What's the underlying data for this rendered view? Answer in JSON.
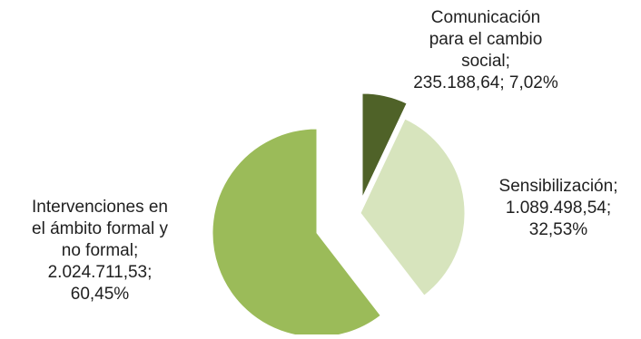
{
  "chart_data": {
    "type": "pie",
    "title": "",
    "slices": [
      {
        "label": "Comunicación para el cambio social",
        "value": 235188.64,
        "percent": 7.02,
        "color": "#4F6228",
        "label_lines": [
          "Comunicación",
          "para el cambio",
          "social;",
          "235.188,64; 7,02%"
        ]
      },
      {
        "label": "Sensibilización",
        "value": 1089498.54,
        "percent": 32.53,
        "color": "#D7E4BD",
        "label_lines": [
          "Sensibilización;",
          "1.089.498,54;",
          "32,53%"
        ]
      },
      {
        "label": "Intervenciones en el ámbito formal y no formal",
        "value": 2024711.53,
        "percent": 60.45,
        "color": "#9BBB59",
        "label_lines": [
          "Intervenciones en",
          "el ámbito formal y",
          "no formal;",
          "2.024.711,53;",
          "60,45%"
        ]
      }
    ],
    "legend": "none",
    "exploded": true
  }
}
